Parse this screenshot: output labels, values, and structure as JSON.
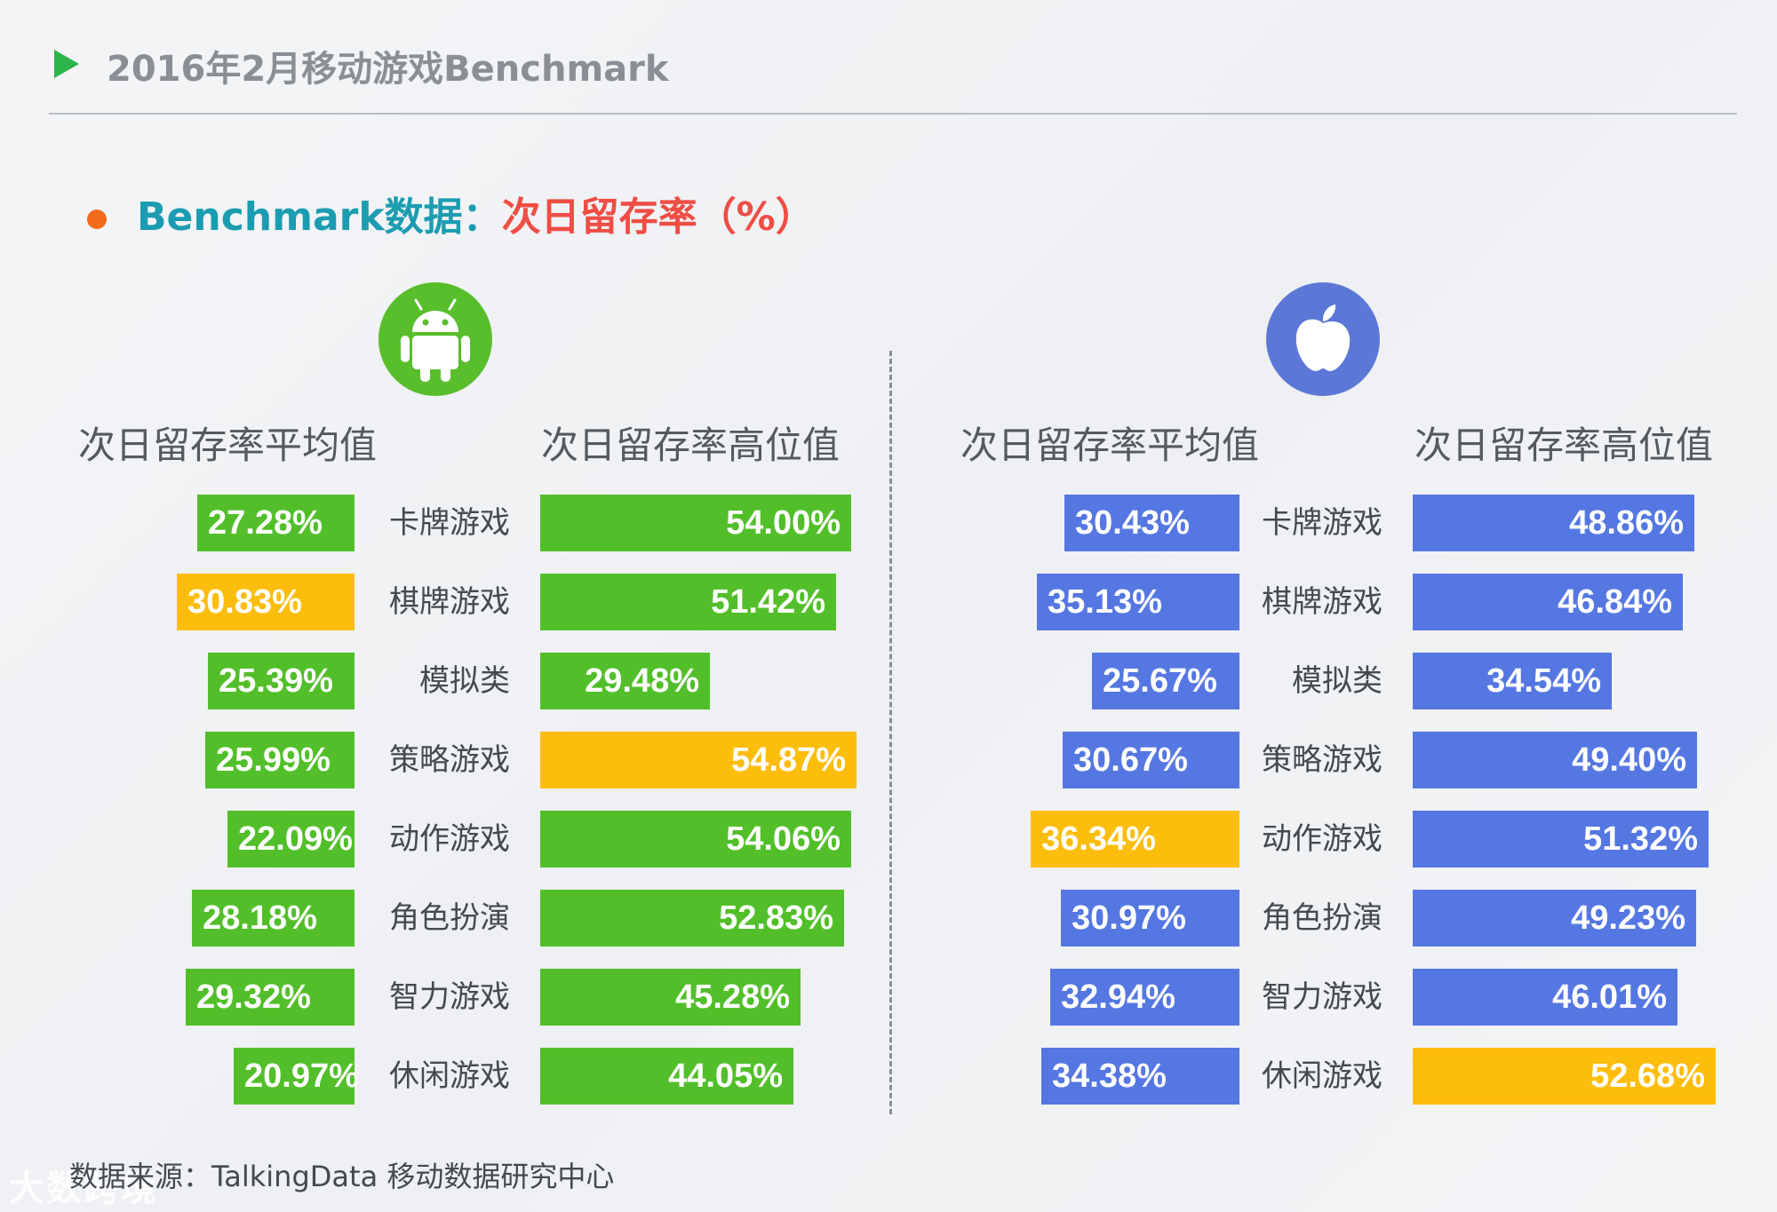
{
  "header": {
    "title": "2016年2月移动游戏Benchmark"
  },
  "section": {
    "prefix": "Benchmark数据：",
    "suffix": "次日留存率（%）"
  },
  "colors": {
    "green": "#52bf2a",
    "blue": "#5577e2",
    "highlight": "#fdbd0c"
  },
  "chart_data": [
    {
      "type": "bar",
      "platform": "android",
      "categories": [
        "卡牌游戏",
        "棋牌游戏",
        "模拟类",
        "策略游戏",
        "动作游戏",
        "角色扮演",
        "智力游戏",
        "休闲游戏"
      ],
      "series": [
        {
          "name": "次日留存率平均值",
          "values": [
            27.28,
            30.83,
            25.39,
            25.99,
            22.09,
            28.18,
            29.32,
            20.97
          ],
          "labels": [
            "27.28%",
            "30.83%",
            "25.39%",
            "25.99%",
            "22.09%",
            "28.18%",
            "29.32%",
            "20.97%"
          ],
          "highlight_index": 1
        },
        {
          "name": "次日留存率高位值",
          "values": [
            54.0,
            51.42,
            29.48,
            54.87,
            54.06,
            52.83,
            45.28,
            44.05
          ],
          "labels": [
            "54.00%",
            "51.42%",
            "29.48%",
            "54.87%",
            "54.06%",
            "52.83%",
            "45.28%",
            "44.05%"
          ],
          "highlight_index": 3
        }
      ]
    },
    {
      "type": "bar",
      "platform": "ios",
      "categories": [
        "卡牌游戏",
        "棋牌游戏",
        "模拟类",
        "策略游戏",
        "动作游戏",
        "角色扮演",
        "智力游戏",
        "休闲游戏"
      ],
      "series": [
        {
          "name": "次日留存率平均值",
          "values": [
            30.43,
            35.13,
            25.67,
            30.67,
            36.34,
            30.97,
            32.94,
            34.38
          ],
          "labels": [
            "30.43%",
            "35.13%",
            "25.67%",
            "30.67%",
            "36.34%",
            "30.97%",
            "32.94%",
            "34.38%"
          ],
          "highlight_index": 4
        },
        {
          "name": "次日留存率高位值",
          "values": [
            48.86,
            46.84,
            34.54,
            49.4,
            51.32,
            49.23,
            46.01,
            52.68
          ],
          "labels": [
            "48.86%",
            "46.84%",
            "34.54%",
            "49.40%",
            "51.32%",
            "49.23%",
            "46.01%",
            "52.68%"
          ],
          "highlight_index": 7
        }
      ]
    }
  ],
  "source": "数据来源：TalkingData 移动数据研究中心",
  "watermark": "大数跨境"
}
